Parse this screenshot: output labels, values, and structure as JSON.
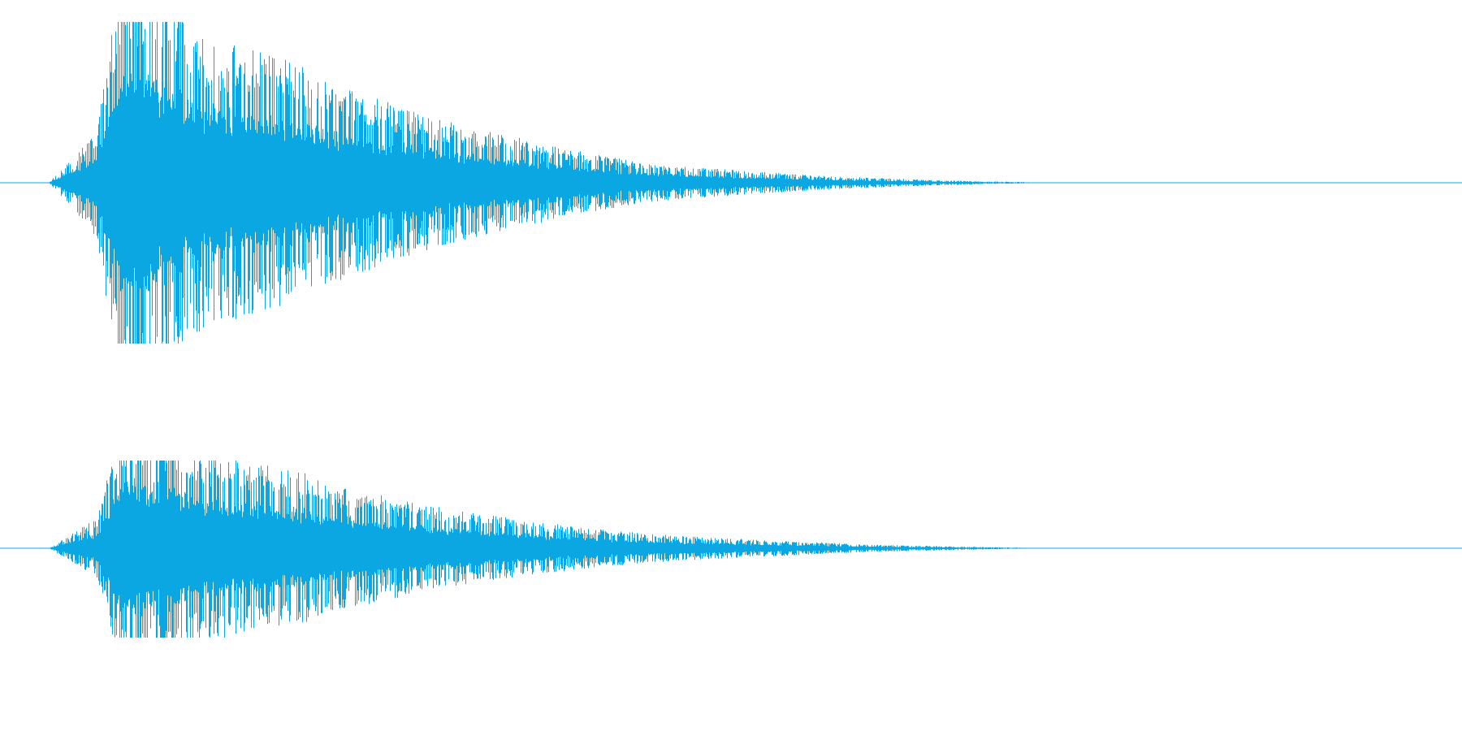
{
  "chart_data": {
    "type": "area",
    "subtype": "audio-waveform",
    "title": "",
    "xlabel": "",
    "ylabel": "",
    "grid": false,
    "legend": "none",
    "color": "#0aa7e2",
    "xlim": [
      0,
      1
    ],
    "ylim": [
      -1,
      1
    ],
    "channels": [
      {
        "x": [
          0.0,
          0.034,
          0.05,
          0.06,
          0.085,
          0.1,
          0.12,
          0.15,
          0.18,
          0.2,
          0.23,
          0.26,
          0.3,
          0.34,
          0.38,
          0.42,
          0.46,
          0.5,
          0.54,
          0.58,
          0.62,
          0.66,
          0.69,
          0.7,
          1.0
        ],
        "envelope": [
          0.0,
          0.22,
          0.82,
          0.85,
          0.75,
          0.62,
          0.56,
          0.52,
          0.47,
          0.4,
          0.34,
          0.28,
          0.22,
          0.17,
          0.12,
          0.08,
          0.06,
          0.045,
          0.03,
          0.02,
          0.012,
          0.006,
          0.003,
          0.0,
          0.0
        ],
        "peak_max": 0.99,
        "peak_min": -0.99
      },
      {
        "x": [
          0.0,
          0.034,
          0.05,
          0.06,
          0.085,
          0.1,
          0.12,
          0.15,
          0.18,
          0.2,
          0.23,
          0.26,
          0.3,
          0.34,
          0.38,
          0.42,
          0.46,
          0.5,
          0.54,
          0.58,
          0.62,
          0.66,
          0.69,
          0.7,
          1.0
        ],
        "envelope": [
          0.0,
          0.12,
          0.48,
          0.52,
          0.46,
          0.4,
          0.37,
          0.34,
          0.3,
          0.26,
          0.22,
          0.18,
          0.14,
          0.11,
          0.08,
          0.06,
          0.045,
          0.035,
          0.025,
          0.015,
          0.01,
          0.005,
          0.002,
          0.0,
          0.0
        ],
        "peak_max": 0.54,
        "peak_min": -0.55
      }
    ]
  }
}
